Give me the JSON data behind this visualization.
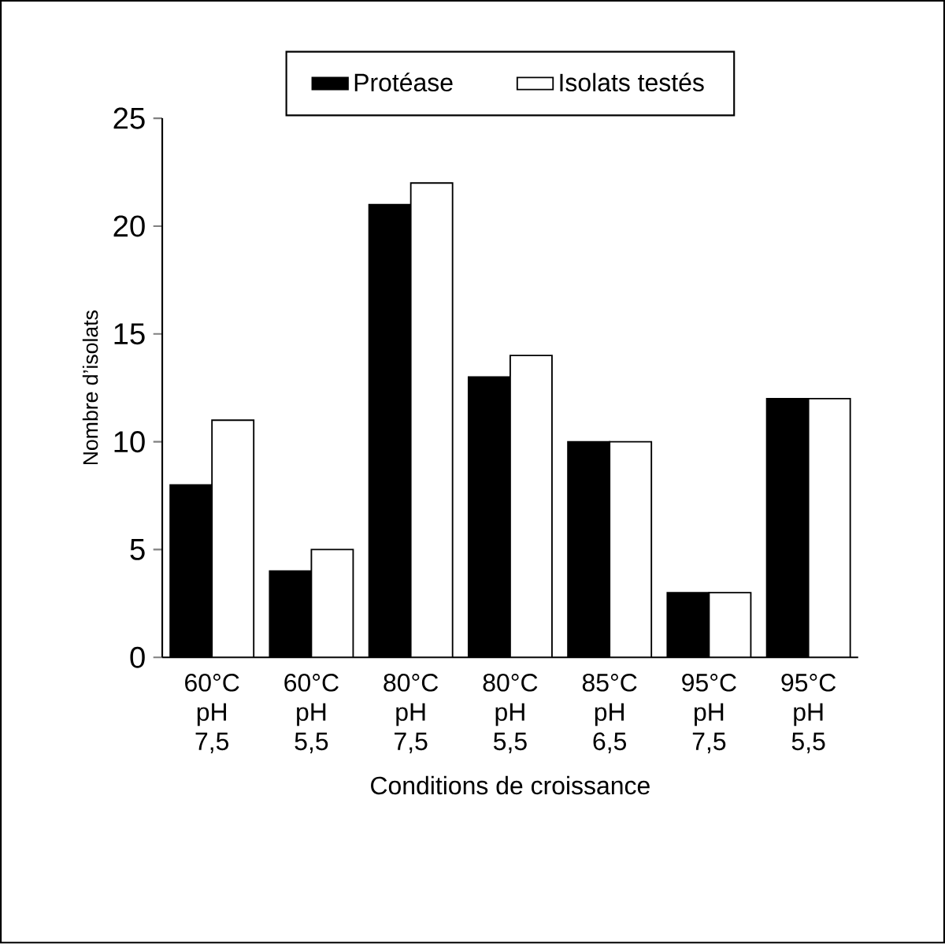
{
  "chart_data": {
    "type": "bar",
    "xlabel": "Conditions de croissance",
    "ylabel": "Nombre d’isolats",
    "categories": [
      "60°C pH 7,5",
      "60°C pH 5,5",
      "80°C pH 7,5",
      "80°C pH 5,5",
      "85°C pH 6,5",
      "95°C pH 7,5",
      "95°C pH 5,5"
    ],
    "series": [
      {
        "name": "Protéase",
        "color": "#000000",
        "values": [
          8,
          4,
          21,
          13,
          10,
          3,
          12
        ]
      },
      {
        "name": "Isolats testés",
        "color": "#ffffff",
        "values": [
          11,
          5,
          22,
          14,
          10,
          3,
          12
        ]
      }
    ],
    "ylim": [
      0,
      25
    ],
    "yticks": [
      0,
      5,
      10,
      15,
      20,
      25
    ],
    "legend": "top",
    "grid": false
  }
}
